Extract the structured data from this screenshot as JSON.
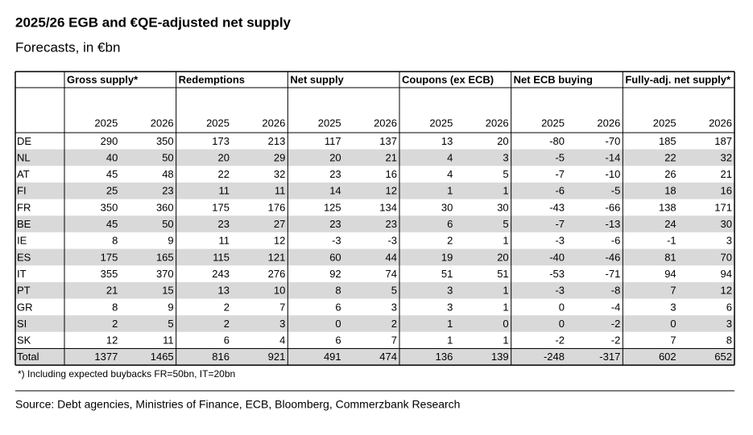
{
  "header": {
    "title": "2025/26 EGB and €QE-adjusted net supply",
    "subtitle": "Forecasts, in €bn"
  },
  "table": {
    "groups": [
      {
        "name": "Gross supply*",
        "years": [
          2025,
          2026
        ]
      },
      {
        "name": "Redemptions",
        "years": [
          2025,
          2026
        ]
      },
      {
        "name": "Net supply",
        "years": [
          2025,
          2026
        ]
      },
      {
        "name": "Coupons (ex ECB)",
        "years": [
          2025,
          2026
        ]
      },
      {
        "name": "Net ECB buying",
        "years": [
          2025,
          2026
        ]
      },
      {
        "name": "Fully-adj. net supply*",
        "years": [
          2025,
          2026
        ]
      }
    ],
    "rows": [
      [
        "DE",
        290,
        350,
        173,
        213,
        117,
        137,
        13,
        20,
        -80,
        -70,
        185,
        187
      ],
      [
        "NL",
        40,
        50,
        20,
        29,
        20,
        21,
        4,
        3,
        -5,
        -14,
        22,
        32
      ],
      [
        "AT",
        45,
        48,
        22,
        32,
        23,
        16,
        4,
        5,
        -7,
        -10,
        26,
        21
      ],
      [
        "FI",
        25,
        23,
        11,
        11,
        14,
        12,
        1,
        1,
        -6,
        -5,
        18,
        16
      ],
      [
        "FR",
        350,
        360,
        175,
        176,
        125,
        134,
        30,
        30,
        -43,
        -66,
        138,
        171
      ],
      [
        "BE",
        45,
        50,
        23,
        27,
        23,
        23,
        6,
        5,
        -7,
        -13,
        24,
        30
      ],
      [
        "IE",
        8,
        9,
        11,
        12,
        -3,
        -3,
        2,
        1,
        -3,
        -6,
        -1,
        3
      ],
      [
        "ES",
        175,
        165,
        115,
        121,
        60,
        44,
        19,
        20,
        -40,
        -46,
        81,
        70
      ],
      [
        "IT",
        355,
        370,
        243,
        276,
        92,
        74,
        51,
        51,
        -53,
        -71,
        94,
        94
      ],
      [
        "PT",
        21,
        15,
        13,
        10,
        8,
        5,
        3,
        1,
        -3,
        -8,
        7,
        12
      ],
      [
        "GR",
        8,
        9,
        2,
        7,
        6,
        3,
        3,
        1,
        0,
        -4,
        3,
        6
      ],
      [
        "SI",
        2,
        5,
        2,
        3,
        0,
        2,
        1,
        0,
        0,
        -2,
        0,
        3
      ],
      [
        "SK",
        12,
        11,
        6,
        4,
        6,
        7,
        1,
        1,
        -2,
        -2,
        7,
        8
      ],
      [
        "Total",
        1377,
        1465,
        816,
        921,
        491,
        474,
        136,
        139,
        -248,
        -317,
        602,
        652
      ]
    ]
  },
  "footnote": "*) Including expected buybacks FR=50bn, IT=20bn",
  "source": "Source: Debt agencies, Ministries of Finance, ECB, Bloomberg, Commerzbank Research"
}
